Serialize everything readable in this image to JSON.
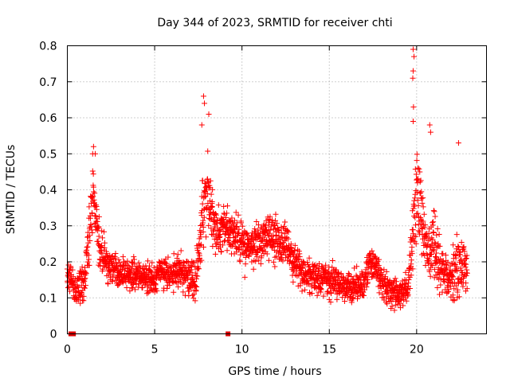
{
  "chart_data": {
    "type": "scatter",
    "title": "Day 344 of 2023, SRMTID for receiver chti",
    "xlabel": "GPS time / hours",
    "ylabel": "SRMTID / TECUs",
    "xlim": [
      0,
      24
    ],
    "ylim": [
      0,
      0.8
    ],
    "xticks": [
      0,
      5,
      10,
      15,
      20
    ],
    "yticks": [
      0,
      0.1,
      0.2,
      0.3,
      0.4,
      0.5,
      0.6,
      0.7,
      0.8
    ],
    "grid": true,
    "marker": "plus",
    "marker_color": "#ff0000",
    "profile_hours": [
      0.0,
      0.5,
      1.0,
      1.3,
      1.5,
      1.7,
      2.0,
      2.3,
      2.6,
      3.0,
      3.5,
      4.0,
      4.5,
      5.0,
      5.5,
      6.0,
      6.5,
      7.0,
      7.3,
      7.6,
      7.8,
      8.0,
      8.3,
      8.6,
      9.0,
      9.5,
      10.0,
      10.5,
      11.0,
      11.5,
      12.0,
      12.5,
      13.0,
      13.5,
      14.0,
      14.5,
      15.0,
      15.5,
      16.0,
      16.5,
      17.0,
      17.3,
      17.6,
      18.0,
      18.5,
      19.0,
      19.5,
      19.8,
      20.0,
      20.3,
      20.6,
      21.0,
      21.5,
      22.0,
      22.3,
      22.6,
      22.9
    ],
    "profile_center": [
      0.17,
      0.12,
      0.15,
      0.3,
      0.38,
      0.28,
      0.22,
      0.2,
      0.18,
      0.17,
      0.16,
      0.17,
      0.16,
      0.16,
      0.17,
      0.17,
      0.18,
      0.15,
      0.14,
      0.25,
      0.38,
      0.42,
      0.33,
      0.28,
      0.3,
      0.27,
      0.25,
      0.24,
      0.25,
      0.27,
      0.26,
      0.24,
      0.2,
      0.17,
      0.16,
      0.15,
      0.15,
      0.14,
      0.13,
      0.13,
      0.14,
      0.2,
      0.2,
      0.14,
      0.12,
      0.11,
      0.13,
      0.3,
      0.4,
      0.32,
      0.22,
      0.25,
      0.17,
      0.15,
      0.2,
      0.2,
      0.16
    ],
    "profile_spread": [
      0.05,
      0.05,
      0.07,
      0.1,
      0.1,
      0.08,
      0.07,
      0.06,
      0.05,
      0.05,
      0.05,
      0.06,
      0.05,
      0.05,
      0.05,
      0.06,
      0.06,
      0.06,
      0.07,
      0.12,
      0.16,
      0.16,
      0.1,
      0.08,
      0.09,
      0.08,
      0.08,
      0.07,
      0.08,
      0.08,
      0.08,
      0.08,
      0.07,
      0.06,
      0.06,
      0.06,
      0.06,
      0.05,
      0.05,
      0.05,
      0.05,
      0.05,
      0.05,
      0.05,
      0.05,
      0.05,
      0.05,
      0.12,
      0.2,
      0.12,
      0.08,
      0.12,
      0.08,
      0.07,
      0.12,
      0.1,
      0.06
    ],
    "samples_per_hour": 100,
    "extreme_points": [
      {
        "x": 19.8,
        "y": 0.79
      },
      {
        "x": 19.85,
        "y": 0.77
      },
      {
        "x": 19.8,
        "y": 0.73
      },
      {
        "x": 19.78,
        "y": 0.71
      },
      {
        "x": 19.82,
        "y": 0.63
      },
      {
        "x": 19.8,
        "y": 0.59
      },
      {
        "x": 7.8,
        "y": 0.66
      },
      {
        "x": 7.85,
        "y": 0.64
      },
      {
        "x": 8.1,
        "y": 0.61
      },
      {
        "x": 7.7,
        "y": 0.58
      },
      {
        "x": 20.75,
        "y": 0.58
      },
      {
        "x": 20.8,
        "y": 0.56
      },
      {
        "x": 22.4,
        "y": 0.53
      },
      {
        "x": 1.5,
        "y": 0.52
      },
      {
        "x": 1.45,
        "y": 0.5
      },
      {
        "x": 1.6,
        "y": 0.5
      }
    ],
    "zero_markers": [
      {
        "x": 0.2,
        "y": 0
      },
      {
        "x": 0.35,
        "y": 0
      },
      {
        "x": 9.2,
        "y": 0
      }
    ]
  }
}
